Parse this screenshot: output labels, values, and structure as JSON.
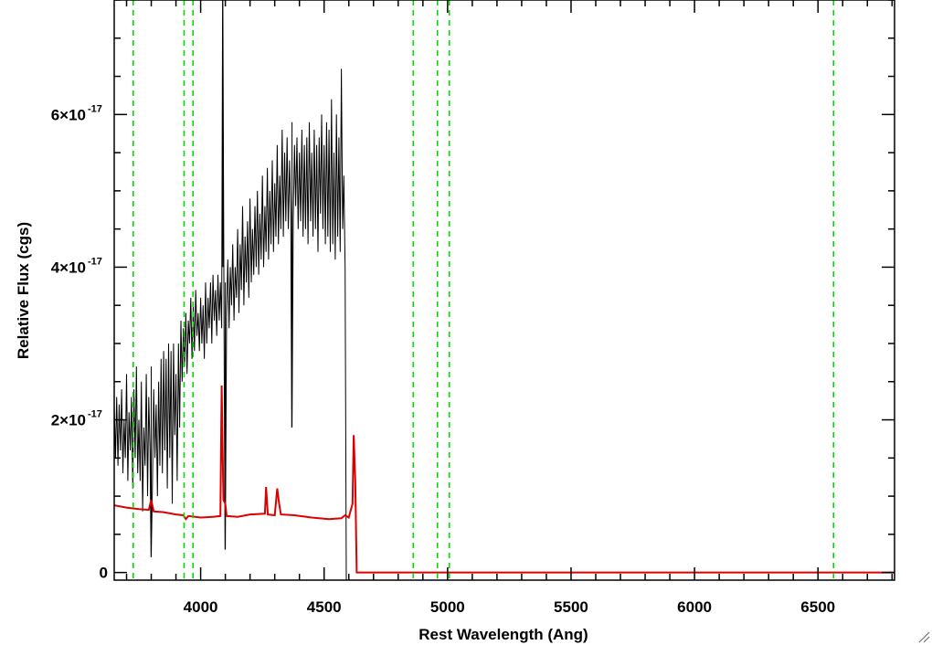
{
  "chart_data": {
    "type": "line",
    "title": "",
    "xlabel": "Rest Wavelength (Ang)",
    "ylabel": "Relative Flux (cgs)",
    "xlim": [
      3650,
      6810
    ],
    "ylim": [
      -1e-18,
      7.5e-17
    ],
    "x_ticks": [
      {
        "value": 4000,
        "label": "4000"
      },
      {
        "value": 4500,
        "label": "4500"
      },
      {
        "value": 5000,
        "label": "5000"
      },
      {
        "value": 5500,
        "label": "5500"
      },
      {
        "value": 6000,
        "label": "6000"
      },
      {
        "value": 6500,
        "label": "6500"
      }
    ],
    "x_minor_step": 100,
    "y_ticks": [
      {
        "value": 0,
        "mant": "0",
        "exp": ""
      },
      {
        "value": 2e-17,
        "mant": "2×10",
        "exp": "-17"
      },
      {
        "value": 4e-17,
        "mant": "4×10",
        "exp": "-17"
      },
      {
        "value": 6e-17,
        "mant": "6×10",
        "exp": "-17"
      }
    ],
    "y_minor_step": 5e-18,
    "grid": false,
    "reference_lines": {
      "color": "#00dd00",
      "style": "dashed",
      "x": [
        3727,
        3933,
        3969,
        4861,
        4959,
        5007,
        6563
      ]
    },
    "series": [
      {
        "role": "spectrum",
        "color": "#000000",
        "x_start": 3650,
        "x_end": 4635,
        "x_step": 5,
        "values": [
          2.2e-17,
          1.5e-17,
          2.3e-17,
          1.4e-17,
          2.2e-17,
          1.6e-17,
          2.4e-17,
          1.3e-17,
          2e-17,
          1.5e-17,
          2.6e-17,
          1.2e-17,
          2.1e-17,
          1.6e-17,
          2.3e-17,
          1.1e-17,
          2.4e-17,
          1.5e-17,
          2.7e-17,
          1.3e-17,
          2e-17,
          1.2e-17,
          2.5e-17,
          8e-18,
          1.9e-17,
          1.4e-17,
          2.6e-17,
          1e-17,
          2.3e-17,
          1.6e-17,
          2.7e-17,
          1.2e-17,
          2.4e-17,
          1.5e-17,
          2.2e-17,
          1e-17,
          2.5e-17,
          1.4e-17,
          2.8e-17,
          1.3e-17,
          2.9e-17,
          1.6e-17,
          2.8e-17,
          1.1e-17,
          3e-17,
          1.5e-17,
          2.9e-17,
          9e-18,
          3e-17,
          1.8e-17,
          2.6e-17,
          1.2e-17,
          3e-17,
          1.9e-17,
          3.3e-17,
          2.5e-17,
          3.2e-17,
          2.7e-17,
          3.4e-17,
          2.6e-17,
          3.3e-17,
          3e-17,
          3.6e-17,
          2.8e-17,
          3.5e-17,
          2.9e-17,
          3.7e-17,
          3.1e-17,
          3.4e-17,
          2.9e-17,
          3.6e-17,
          3e-17,
          3.5e-17,
          2.8e-17,
          3.8e-17,
          3e-17,
          3.6e-17,
          3.2e-17,
          3.8e-17,
          3e-17,
          3.9e-17,
          3.3e-17,
          3.7e-17,
          3.1e-17,
          3.9e-17,
          3.3e-17,
          3.8e-17,
          3.2e-17,
          4e-17,
          2.9e-17,
          3.8e-17,
          3.4e-17,
          4.1e-17,
          3.2e-17,
          4e-17,
          3.5e-17,
          4.3e-17,
          3.3e-17,
          4e-17,
          3.6e-17,
          4.5e-17,
          3.4e-17,
          4.3e-17,
          3.7e-17,
          4.8e-17,
          3.5e-17,
          4.4e-17,
          3.8e-17,
          4.6e-17,
          3.6e-17,
          4.9e-17,
          3.8e-17,
          4.5e-17,
          3.9e-17,
          4.8e-17,
          4e-17,
          5e-17,
          3.9e-17,
          4.7e-17,
          4.1e-17,
          5.2e-17,
          4e-17,
          4.8e-17,
          4.2e-17,
          5.3e-17,
          4.1e-17,
          5e-17,
          4.3e-17,
          5.4e-17,
          4.2e-17,
          5.1e-17,
          4.4e-17,
          5.6e-17,
          4.3e-17,
          5.2e-17,
          4.5e-17,
          5.8e-17,
          4.4e-17,
          5.5e-17,
          4.6e-17,
          5.7e-17,
          4.5e-17,
          5.4e-17,
          4.7e-17,
          5.9e-17,
          4.6e-17,
          5.6e-17,
          4.8e-17,
          5.7e-17,
          4.5e-17,
          5.5e-17,
          4.6e-17,
          5.8e-17,
          4.4e-17,
          5.6e-17,
          4.5e-17,
          5.7e-17,
          4.3e-17,
          5.9e-17,
          4.6e-17,
          5.5e-17,
          4.4e-17,
          5.8e-17,
          4.5e-17,
          5.6e-17,
          4.2e-17,
          5.7e-17,
          4.7e-17,
          6e-17,
          4.5e-17,
          5.6e-17,
          4.3e-17,
          5.9e-17,
          4.4e-17,
          5.8e-17,
          4.2e-17,
          6.2e-17,
          4.3e-17,
          5.5e-17,
          4.1e-17,
          6e-17,
          4.4e-17,
          5.7e-17,
          4.2e-17,
          6.6e-17,
          4.5e-17,
          5.2e-17,
          4e-17,
          -1e-18
        ],
        "spikes": [
          [
            4090,
            7.5e-17
          ],
          [
            4100,
            3e-18
          ],
          [
            4370,
            1.9e-17
          ],
          [
            3800,
            2e-18
          ]
        ]
      },
      {
        "role": "error",
        "color": "#dd0000",
        "points": [
          [
            3650,
            8.8e-18
          ],
          [
            3700,
            8.5e-18
          ],
          [
            3750,
            8.3e-18
          ],
          [
            3790,
            8.2e-18
          ],
          [
            3800,
            9.5e-18
          ],
          [
            3810,
            8e-18
          ],
          [
            3850,
            7.9e-18
          ],
          [
            3900,
            7.6e-18
          ],
          [
            3930,
            7.5e-18
          ],
          [
            3940,
            7e-18
          ],
          [
            3950,
            7.4e-18
          ],
          [
            4000,
            7.2e-18
          ],
          [
            4050,
            7.3e-18
          ],
          [
            4080,
            7.4e-18
          ],
          [
            4085,
            2.45e-17
          ],
          [
            4092,
            9.5e-18
          ],
          [
            4100,
            9e-18
          ],
          [
            4105,
            7.4e-18
          ],
          [
            4150,
            7.3e-18
          ],
          [
            4200,
            7.6e-18
          ],
          [
            4260,
            7.7e-18
          ],
          [
            4265,
            1.12e-17
          ],
          [
            4272,
            7.6e-18
          ],
          [
            4300,
            7.5e-18
          ],
          [
            4310,
            1.1e-17
          ],
          [
            4318,
            9e-18
          ],
          [
            4325,
            7.6e-18
          ],
          [
            4380,
            7.5e-18
          ],
          [
            4450,
            7.2e-18
          ],
          [
            4520,
            7e-18
          ],
          [
            4570,
            7.1e-18
          ],
          [
            4585,
            7.5e-18
          ],
          [
            4600,
            7.2e-18
          ],
          [
            4615,
            9e-18
          ],
          [
            4620,
            1.8e-17
          ],
          [
            4626,
            1.2e-17
          ],
          [
            4632,
            0.0
          ],
          [
            6810,
            0.0
          ]
        ]
      }
    ]
  }
}
